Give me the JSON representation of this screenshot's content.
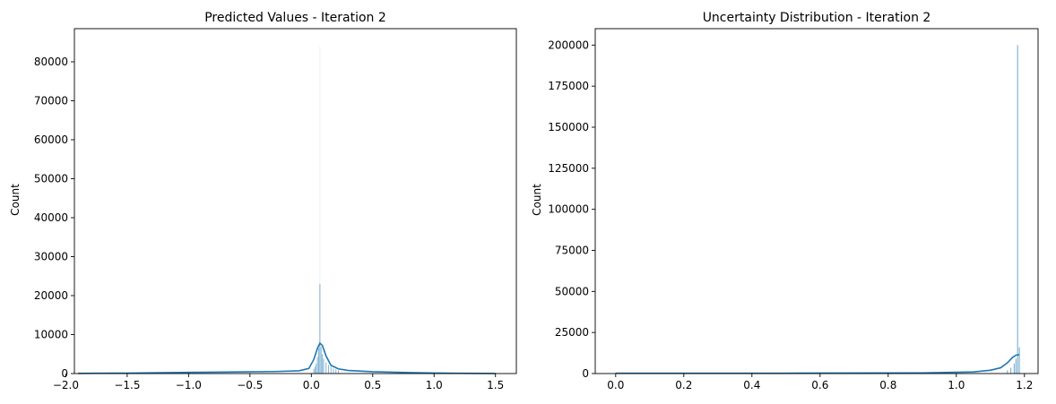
{
  "chart_data": [
    {
      "type": "histogram",
      "title": "Predicted Values - Iteration 2",
      "xlabel": "",
      "ylabel": "Count",
      "xlim": [
        -1.93,
        1.67
      ],
      "ylim": [
        0,
        88500
      ],
      "xticks": [
        -2.0,
        -1.5,
        -1.0,
        -0.5,
        0.0,
        0.5,
        1.0,
        1.5
      ],
      "xtick_labels": [
        "−2.0",
        "−1.5",
        "−1.0",
        "−0.5",
        "0.0",
        "0.5",
        "1.0",
        "1.5"
      ],
      "yticks": [
        0,
        10000,
        20000,
        30000,
        40000,
        50000,
        60000,
        70000,
        80000
      ],
      "ytick_labels": [
        "0",
        "10000",
        "20000",
        "30000",
        "40000",
        "50000",
        "60000",
        "70000",
        "80000"
      ],
      "bars": [
        {
          "x": 0.02,
          "count": 1200
        },
        {
          "x": 0.03,
          "count": 1800
        },
        {
          "x": 0.04,
          "count": 2600
        },
        {
          "x": 0.05,
          "count": 4300
        },
        {
          "x": 0.06,
          "count": 6500
        },
        {
          "x": 0.07,
          "count": 23000
        },
        {
          "x": 0.08,
          "count": 6800
        },
        {
          "x": 0.09,
          "count": 5000
        },
        {
          "x": 0.1,
          "count": 3800
        },
        {
          "x": 0.12,
          "count": 2800
        },
        {
          "x": 0.14,
          "count": 2200
        },
        {
          "x": 0.16,
          "count": 1700
        },
        {
          "x": 0.18,
          "count": 1300
        },
        {
          "x": 0.2,
          "count": 1050
        },
        {
          "x": 0.22,
          "count": 850
        }
      ],
      "spike": {
        "x": 0.07,
        "count": 84000
      },
      "kde": [
        [
          -1.9,
          40
        ],
        [
          -1.5,
          110
        ],
        [
          -1.0,
          300
        ],
        [
          -0.6,
          420
        ],
        [
          -0.3,
          520
        ],
        [
          -0.1,
          700
        ],
        [
          -0.02,
          1300
        ],
        [
          0.02,
          3600
        ],
        [
          0.05,
          6500
        ],
        [
          0.07,
          7800
        ],
        [
          0.09,
          7200
        ],
        [
          0.12,
          4500
        ],
        [
          0.16,
          2100
        ],
        [
          0.22,
          1200
        ],
        [
          0.3,
          800
        ],
        [
          0.5,
          480
        ],
        [
          0.8,
          250
        ],
        [
          1.0,
          140
        ],
        [
          1.2,
          70
        ],
        [
          1.5,
          20
        ]
      ],
      "color": "#1f77b4"
    },
    {
      "type": "histogram",
      "title": "Uncertainty Distribution - Iteration 2",
      "xlabel": "",
      "ylabel": "Count",
      "xlim": [
        -0.06,
        1.24
      ],
      "ylim": [
        0,
        210000
      ],
      "xticks": [
        0.0,
        0.2,
        0.4,
        0.6,
        0.8,
        1.0,
        1.2
      ],
      "xtick_labels": [
        "0.0",
        "0.2",
        "0.4",
        "0.6",
        "0.8",
        "1.0",
        "1.2"
      ],
      "yticks": [
        0,
        25000,
        50000,
        75000,
        100000,
        125000,
        150000,
        175000,
        200000
      ],
      "ytick_labels": [
        "0",
        "25000",
        "50000",
        "75000",
        "100000",
        "125000",
        "150000",
        "175000",
        "200000"
      ],
      "bars": [
        {
          "x": 1.15,
          "count": 2000
        },
        {
          "x": 1.16,
          "count": 3500
        },
        {
          "x": 1.17,
          "count": 6000
        },
        {
          "x": 1.175,
          "count": 9000
        },
        {
          "x": 1.18,
          "count": 200000
        },
        {
          "x": 1.185,
          "count": 16000
        }
      ],
      "kde": [
        [
          0.0,
          150
        ],
        [
          0.5,
          200
        ],
        [
          0.9,
          400
        ],
        [
          1.05,
          1000
        ],
        [
          1.1,
          2000
        ],
        [
          1.13,
          3500
        ],
        [
          1.15,
          6500
        ],
        [
          1.165,
          9800
        ],
        [
          1.175,
          11200
        ],
        [
          1.185,
          11500
        ]
      ],
      "color": "#1f77b4"
    }
  ]
}
